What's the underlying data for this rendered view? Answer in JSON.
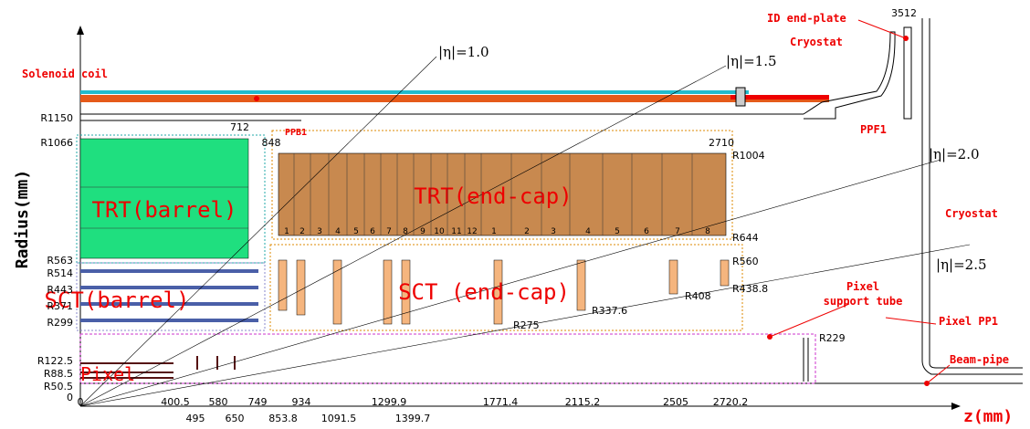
{
  "labels": {
    "solenoid": "Solenoid coil",
    "id_end_plate": "ID end-plate",
    "cryostat_top": "Cryostat",
    "ppf1": "PPF1",
    "ppb1": "PPB1",
    "cryostat_right": "Cryostat",
    "pixel_support_tube": [
      "Pixel",
      "support tube"
    ],
    "pixel_pp1": "Pixel PP1",
    "beam_pipe": "Beam-pipe"
  },
  "detectors": {
    "trt_barrel": "TRT(barrel)",
    "trt_endcap": "TRT(end-cap)",
    "sct_barrel": "SCT(barrel)",
    "sct_endcap": "SCT (end-cap)",
    "pixel": "Pixel"
  },
  "eta_lines": [
    "|η|=1.0",
    "|η|=1.5",
    "|η|=2.0",
    "|η|=2.5"
  ],
  "axes": {
    "y_label": "Radius(mm)",
    "x_label": "z(mm)"
  },
  "radius_labels": [
    "R1150",
    "R1066",
    "R563",
    "R514",
    "R443",
    "R371",
    "R299",
    "R122.5",
    "R88.5",
    "R50.5",
    "0"
  ],
  "z_labels": [
    "0",
    "400.5",
    "580",
    "749",
    "934",
    "1299.9",
    "1771.4",
    "2115.2",
    "2505",
    "2720.2"
  ],
  "z_labels_lower": [
    "495",
    "650",
    "853.8",
    "1091.5",
    "1399.7"
  ],
  "dimension_labels": [
    "712",
    "848",
    "2710",
    "R1004",
    "R644",
    "R560",
    "R438.8",
    "R408",
    "R337.6",
    "R275",
    "R229",
    "3512"
  ],
  "trt_wheels": [
    "1",
    "2",
    "3",
    "4",
    "5",
    "6",
    "7",
    "8",
    "9",
    "10",
    "11",
    "12",
    "1",
    "2",
    "3",
    "4",
    "5",
    "6",
    "7",
    "8"
  ]
}
